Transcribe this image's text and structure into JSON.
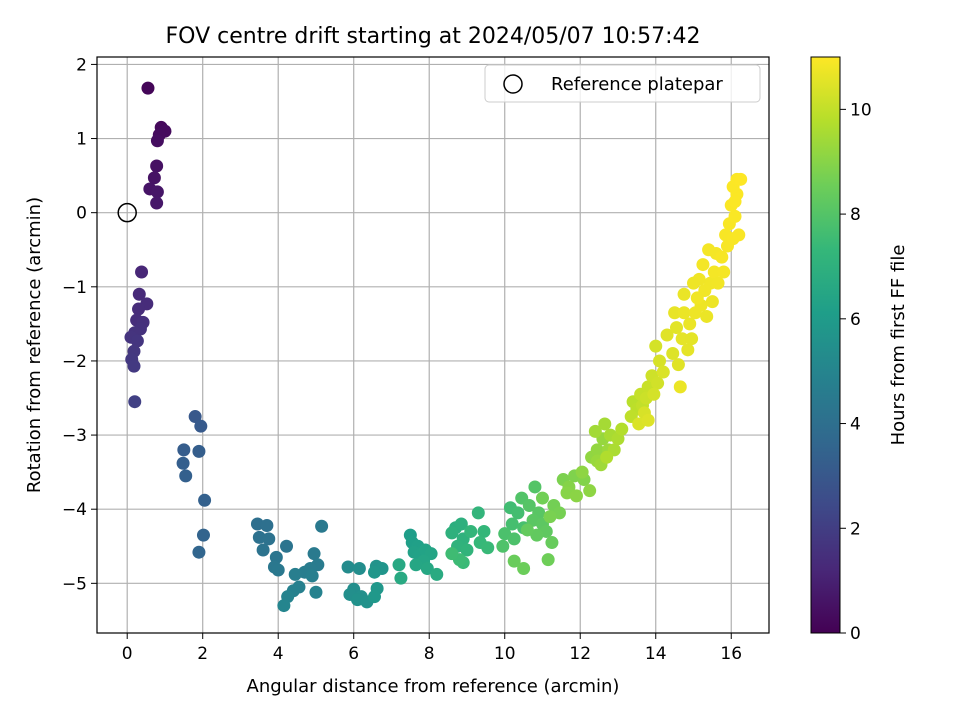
{
  "chart_data": {
    "type": "scatter",
    "title": "FOV centre drift starting at 2024/05/07 10:57:42",
    "xlabel": "Angular distance from reference (arcmin)",
    "ylabel": "Rotation from reference (arcmin)",
    "xlim": [
      -0.8,
      17.0
    ],
    "ylim": [
      -5.67,
      2.1
    ],
    "xticks": [
      0,
      2,
      4,
      6,
      8,
      10,
      12,
      14,
      16
    ],
    "xtick_labels": [
      "0",
      "2",
      "4",
      "6",
      "8",
      "10",
      "12",
      "14",
      "16"
    ],
    "yticks": [
      -5,
      -4,
      -3,
      -2,
      -1,
      0,
      1,
      2
    ],
    "ytick_labels": [
      "−5",
      "−4",
      "−3",
      "−2",
      "−1",
      "0",
      "1",
      "2"
    ],
    "grid": true,
    "legend": {
      "placement": "top-right",
      "entries": [
        "Reference platepar"
      ]
    },
    "reference_point": {
      "x": 0,
      "y": 0
    },
    "colorbar": {
      "label": "Hours from first FF file",
      "range": [
        0,
        11
      ],
      "ticks": [
        0,
        2,
        4,
        6,
        8,
        10
      ],
      "tick_labels": [
        "0",
        "2",
        "4",
        "6",
        "8",
        "10"
      ],
      "colormap": [
        "#440154",
        "#482878",
        "#3e4a89",
        "#31688e",
        "#26828e",
        "#1f9e89",
        "#35b779",
        "#6ece58",
        "#b5de2b",
        "#fde725"
      ]
    },
    "points": [
      [
        0.55,
        1.68,
        0.15
      ],
      [
        0.9,
        1.15,
        0.25
      ],
      [
        1.0,
        1.1,
        0.3
      ],
      [
        0.85,
        1.05,
        0.35
      ],
      [
        0.8,
        0.97,
        0.4
      ],
      [
        0.78,
        0.63,
        0.5
      ],
      [
        0.72,
        0.47,
        0.55
      ],
      [
        0.6,
        0.32,
        0.6
      ],
      [
        0.8,
        0.28,
        0.65
      ],
      [
        0.78,
        0.13,
        0.7
      ],
      [
        0.38,
        -0.8,
        1.2
      ],
      [
        0.32,
        -1.1,
        1.3
      ],
      [
        0.52,
        -1.23,
        1.35
      ],
      [
        0.3,
        -1.3,
        1.4
      ],
      [
        0.25,
        -1.45,
        1.45
      ],
      [
        0.42,
        -1.48,
        1.5
      ],
      [
        0.35,
        -1.57,
        1.55
      ],
      [
        0.2,
        -1.62,
        1.6
      ],
      [
        0.1,
        -1.68,
        1.65
      ],
      [
        0.27,
        -1.73,
        1.7
      ],
      [
        0.18,
        -1.87,
        1.75
      ],
      [
        0.12,
        -1.98,
        1.8
      ],
      [
        0.18,
        -2.07,
        1.85
      ],
      [
        0.2,
        -2.55,
        2.1
      ],
      [
        1.8,
        -2.75,
        3.0
      ],
      [
        1.95,
        -2.88,
        3.1
      ],
      [
        1.5,
        -3.2,
        3.2
      ],
      [
        1.9,
        -3.22,
        3.25
      ],
      [
        1.48,
        -3.38,
        3.3
      ],
      [
        1.55,
        -3.55,
        3.35
      ],
      [
        2.05,
        -3.88,
        3.4
      ],
      [
        2.02,
        -4.35,
        3.5
      ],
      [
        1.9,
        -4.58,
        3.6
      ],
      [
        3.45,
        -4.2,
        4.0
      ],
      [
        3.7,
        -4.22,
        4.05
      ],
      [
        3.5,
        -4.38,
        4.1
      ],
      [
        3.75,
        -4.4,
        4.15
      ],
      [
        3.6,
        -4.55,
        4.2
      ],
      [
        4.22,
        -4.5,
        4.25
      ],
      [
        3.95,
        -4.65,
        4.3
      ],
      [
        3.9,
        -4.78,
        4.35
      ],
      [
        4.0,
        -4.82,
        4.4
      ],
      [
        5.15,
        -4.23,
        4.45
      ],
      [
        4.95,
        -4.6,
        4.5
      ],
      [
        5.05,
        -4.75,
        4.55
      ],
      [
        4.85,
        -4.8,
        4.6
      ],
      [
        4.7,
        -4.85,
        4.65
      ],
      [
        4.45,
        -4.88,
        4.7
      ],
      [
        4.9,
        -4.9,
        4.75
      ],
      [
        4.55,
        -5.05,
        4.8
      ],
      [
        4.4,
        -5.1,
        4.85
      ],
      [
        5.0,
        -5.12,
        4.9
      ],
      [
        4.25,
        -5.18,
        4.95
      ],
      [
        4.15,
        -5.3,
        5.0
      ],
      [
        5.85,
        -4.78,
        5.3
      ],
      [
        6.15,
        -4.8,
        5.35
      ],
      [
        6.0,
        -5.08,
        5.4
      ],
      [
        5.9,
        -5.15,
        5.45
      ],
      [
        6.2,
        -5.18,
        5.5
      ],
      [
        6.1,
        -5.22,
        5.55
      ],
      [
        6.35,
        -5.25,
        5.6
      ],
      [
        6.6,
        -4.77,
        5.65
      ],
      [
        6.75,
        -4.8,
        5.7
      ],
      [
        6.55,
        -4.85,
        5.75
      ],
      [
        6.62,
        -5.07,
        5.8
      ],
      [
        6.55,
        -5.18,
        5.85
      ],
      [
        7.5,
        -4.35,
        6.1
      ],
      [
        7.55,
        -4.45,
        6.15
      ],
      [
        7.7,
        -4.5,
        6.2
      ],
      [
        7.6,
        -4.58,
        6.25
      ],
      [
        7.75,
        -4.62,
        6.3
      ],
      [
        7.9,
        -4.55,
        6.35
      ],
      [
        8.05,
        -4.6,
        6.4
      ],
      [
        7.85,
        -4.7,
        6.45
      ],
      [
        7.65,
        -4.75,
        6.5
      ],
      [
        7.95,
        -4.8,
        6.55
      ],
      [
        7.2,
        -4.75,
        6.6
      ],
      [
        7.25,
        -4.93,
        6.65
      ],
      [
        8.2,
        -4.88,
        6.7
      ],
      [
        8.7,
        -4.25,
        6.9
      ],
      [
        8.85,
        -4.2,
        6.95
      ],
      [
        8.6,
        -4.32,
        7.0
      ],
      [
        8.9,
        -4.4,
        7.05
      ],
      [
        8.75,
        -4.5,
        7.1
      ],
      [
        9.0,
        -4.55,
        7.15
      ],
      [
        9.3,
        -4.05,
        7.2
      ],
      [
        9.1,
        -4.3,
        7.25
      ],
      [
        9.45,
        -4.3,
        7.3
      ],
      [
        9.35,
        -4.45,
        7.35
      ],
      [
        9.55,
        -4.52,
        7.4
      ],
      [
        8.9,
        -4.72,
        7.45
      ],
      [
        8.8,
        -4.68,
        7.5
      ],
      [
        8.6,
        -4.6,
        7.55
      ],
      [
        10.15,
        -3.98,
        7.6
      ],
      [
        10.35,
        -4.05,
        7.65
      ],
      [
        10.2,
        -4.2,
        7.7
      ],
      [
        10.5,
        -4.25,
        7.75
      ],
      [
        10.0,
        -4.33,
        7.8
      ],
      [
        10.25,
        -4.4,
        7.85
      ],
      [
        9.95,
        -4.5,
        7.9
      ],
      [
        10.45,
        -3.85,
        7.95
      ],
      [
        10.8,
        -3.7,
        8.0
      ],
      [
        10.65,
        -3.95,
        8.05
      ],
      [
        10.9,
        -4.05,
        8.1
      ],
      [
        10.75,
        -4.15,
        8.15
      ],
      [
        11.0,
        -4.2,
        8.2
      ],
      [
        11.1,
        -4.3,
        8.25
      ],
      [
        10.85,
        -4.35,
        8.3
      ],
      [
        10.6,
        -4.28,
        8.35
      ],
      [
        11.25,
        -4.45,
        8.4
      ],
      [
        10.25,
        -4.7,
        8.45
      ],
      [
        10.5,
        -4.8,
        8.5
      ],
      [
        11.15,
        -4.68,
        8.55
      ],
      [
        11.0,
        -3.85,
        8.6
      ],
      [
        11.3,
        -3.95,
        8.65
      ],
      [
        11.45,
        -4.05,
        8.7
      ],
      [
        11.2,
        -4.1,
        8.75
      ],
      [
        11.55,
        -3.6,
        8.8
      ],
      [
        11.85,
        -3.55,
        8.85
      ],
      [
        12.1,
        -3.6,
        8.9
      ],
      [
        11.7,
        -3.7,
        8.95
      ],
      [
        11.65,
        -3.78,
        9.0
      ],
      [
        11.9,
        -3.82,
        9.05
      ],
      [
        12.25,
        -3.75,
        9.1
      ],
      [
        12.05,
        -3.5,
        9.1
      ],
      [
        12.3,
        -3.3,
        9.15
      ],
      [
        12.45,
        -3.2,
        9.2
      ],
      [
        12.6,
        -3.05,
        9.25
      ],
      [
        12.45,
        -3.35,
        9.3
      ],
      [
        12.75,
        -3.2,
        9.35
      ],
      [
        12.55,
        -3.4,
        9.4
      ],
      [
        12.4,
        -2.95,
        9.45
      ],
      [
        12.65,
        -2.85,
        9.5
      ],
      [
        12.8,
        -3.0,
        9.55
      ],
      [
        12.9,
        -3.2,
        9.6
      ],
      [
        13.0,
        -3.05,
        9.65
      ],
      [
        12.7,
        -3.3,
        9.7
      ],
      [
        13.1,
        -2.92,
        9.75
      ],
      [
        13.4,
        -2.55,
        9.85
      ],
      [
        13.5,
        -2.65,
        9.9
      ],
      [
        13.35,
        -2.75,
        9.95
      ],
      [
        13.65,
        -2.6,
        10.0
      ],
      [
        13.6,
        -2.45,
        10.05
      ],
      [
        13.8,
        -2.35,
        10.1
      ],
      [
        13.75,
        -2.5,
        10.15
      ],
      [
        13.9,
        -2.2,
        10.2
      ],
      [
        14.05,
        -2.3,
        10.25
      ],
      [
        13.95,
        -2.45,
        10.3
      ],
      [
        13.7,
        -2.7,
        10.35
      ],
      [
        13.55,
        -2.85,
        10.4
      ],
      [
        13.8,
        -2.8,
        10.45
      ],
      [
        14.0,
        -1.8,
        10.3
      ],
      [
        14.1,
        -2.0,
        10.35
      ],
      [
        14.2,
        -2.15,
        10.4
      ],
      [
        14.45,
        -1.9,
        10.45
      ],
      [
        14.6,
        -2.05,
        10.5
      ],
      [
        14.3,
        -1.65,
        10.5
      ],
      [
        14.55,
        -1.55,
        10.55
      ],
      [
        14.7,
        -1.7,
        10.6
      ],
      [
        14.85,
        -1.85,
        10.6
      ],
      [
        14.5,
        -1.35,
        10.65
      ],
      [
        14.75,
        -1.35,
        10.7
      ],
      [
        14.65,
        -2.35,
        10.7
      ],
      [
        14.9,
        -1.5,
        10.7
      ],
      [
        15.05,
        -1.35,
        10.75
      ],
      [
        15.2,
        -1.25,
        10.75
      ],
      [
        15.3,
        -1.05,
        10.8
      ],
      [
        15.1,
        -1.15,
        10.8
      ],
      [
        15.45,
        -0.95,
        10.8
      ],
      [
        15.55,
        -0.8,
        10.85
      ],
      [
        15.25,
        -0.7,
        10.85
      ],
      [
        15.6,
        -0.55,
        10.85
      ],
      [
        15.75,
        -0.6,
        10.9
      ],
      [
        15.9,
        -0.45,
        10.9
      ],
      [
        15.85,
        -0.3,
        10.9
      ],
      [
        16.05,
        -0.35,
        10.92
      ],
      [
        15.95,
        -0.15,
        10.92
      ],
      [
        16.1,
        -0.05,
        10.94
      ],
      [
        16.0,
        0.1,
        10.95
      ],
      [
        16.15,
        0.25,
        10.96
      ],
      [
        16.05,
        0.35,
        10.97
      ],
      [
        16.15,
        0.45,
        10.98
      ],
      [
        16.25,
        0.45,
        11.0
      ],
      [
        15.15,
        -0.9,
        10.78
      ],
      [
        15.35,
        -1.4,
        10.7
      ],
      [
        15.0,
        -0.95,
        10.75
      ],
      [
        15.4,
        -0.5,
        10.85
      ],
      [
        15.65,
        -0.95,
        10.82
      ],
      [
        15.8,
        -0.8,
        10.86
      ],
      [
        15.5,
        -1.2,
        10.72
      ],
      [
        14.95,
        -1.7,
        10.58
      ],
      [
        14.75,
        -1.1,
        10.68
      ],
      [
        16.1,
        0.15,
        10.96
      ],
      [
        16.2,
        -0.3,
        10.93
      ]
    ]
  }
}
